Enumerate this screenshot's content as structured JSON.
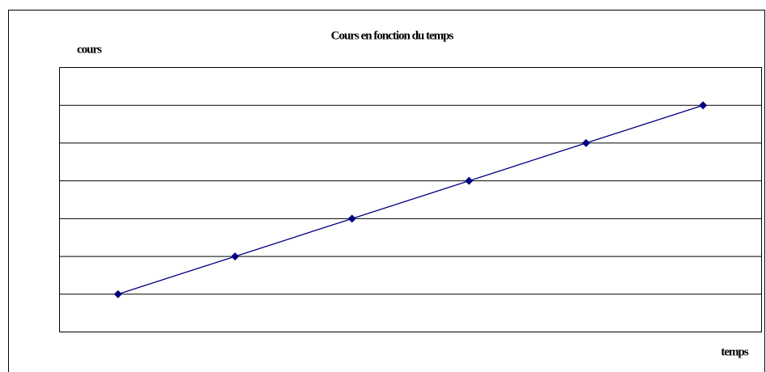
{
  "chart_data": {
    "type": "line",
    "title": "Cours en fonction du temps",
    "y_label": "cours",
    "x_label": "temps",
    "categories": [
      null,
      null,
      null,
      null,
      null,
      null
    ],
    "series": [
      {
        "color": "#000080",
        "values": [
          1,
          2,
          3,
          4,
          5,
          6
        ]
      }
    ],
    "ylim": [
      0,
      7
    ],
    "yticks": [
      1,
      2,
      3,
      4,
      5,
      6
    ],
    "grid": true,
    "tick_labels": false
  }
}
